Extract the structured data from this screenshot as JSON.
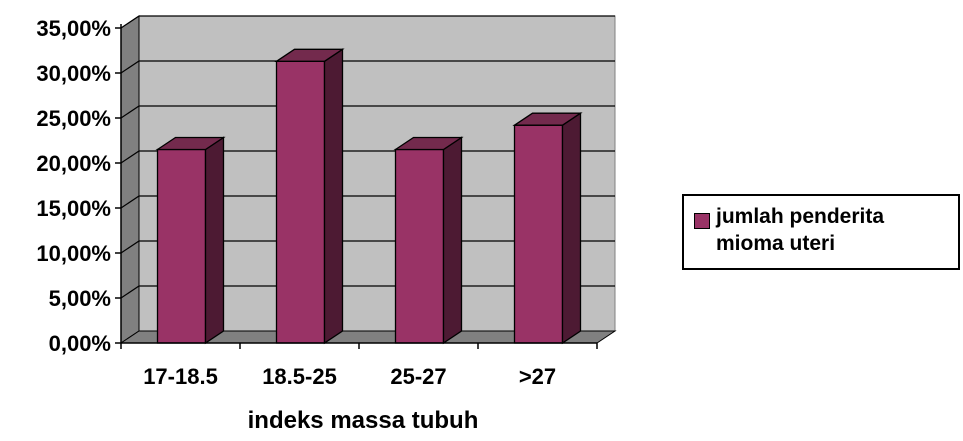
{
  "chart_data": {
    "type": "bar",
    "categories": [
      "17-18.5",
      "18.5-25",
      "25-27",
      ">27"
    ],
    "series": [
      {
        "name": "jumlah penderita mioma uteri",
        "values": [
          21.5,
          31.3,
          21.5,
          24.2
        ]
      }
    ],
    "y_tick_labels": [
      "0,00%",
      "5,00%",
      "10,00%",
      "15,00%",
      "20,00%",
      "25,00%",
      "30,00%",
      "35,00%"
    ],
    "ylim": [
      0,
      35
    ],
    "xlabel": "indeks massa tubuh",
    "ylabel": "",
    "grid": true,
    "legend_position": "right",
    "three_d": true,
    "colors": {
      "bar_front": "#993366",
      "bar_side": "#4d1a33",
      "bar_top": "#732a4d",
      "plot_back": "#c0c0c0",
      "plot_floor": "#808080"
    }
  }
}
